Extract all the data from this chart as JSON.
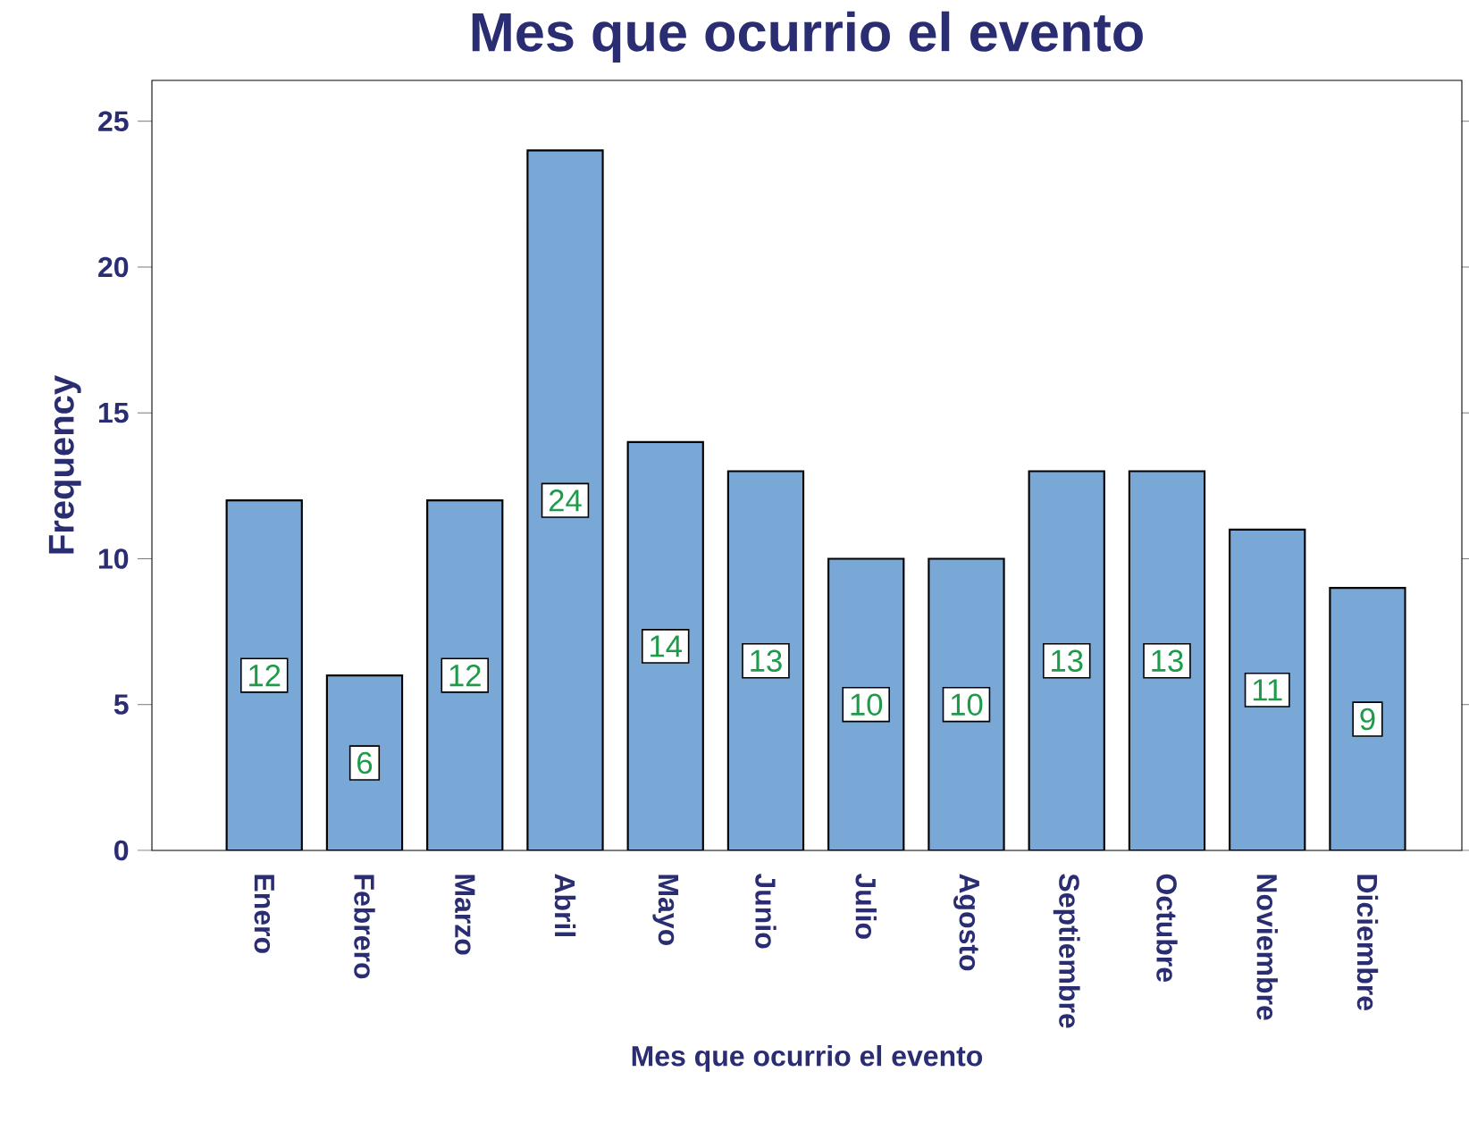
{
  "chart_data": {
    "type": "bar",
    "title": "Mes que ocurrio el evento",
    "xlabel": "Mes que ocurrio el evento",
    "ylabel": "Frequency",
    "categories": [
      "Enero",
      "Febrero",
      "Marzo",
      "Abril",
      "Mayo",
      "Junio",
      "Julio",
      "Agosto",
      "Septiembre",
      "Octubre",
      "Noviembre",
      "Diciembre"
    ],
    "values": [
      12,
      6,
      12,
      24,
      14,
      13,
      10,
      10,
      13,
      13,
      11,
      9
    ],
    "color": "#79a8d6",
    "ylim": [
      0,
      26.4
    ],
    "yticks": [
      0,
      5,
      10,
      15,
      20,
      25
    ],
    "data_labels": true,
    "grid": false
  }
}
